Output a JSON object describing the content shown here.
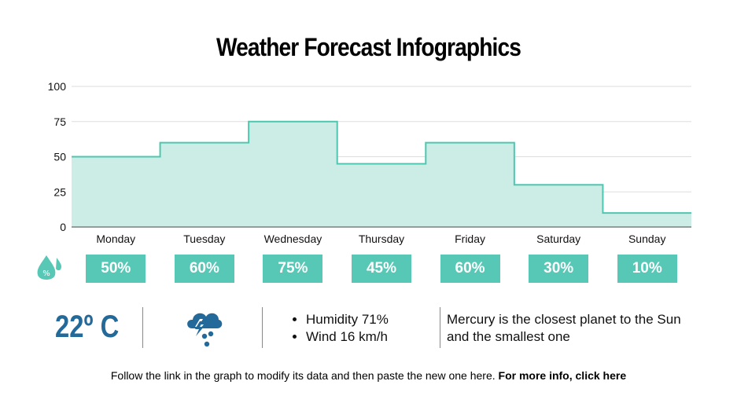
{
  "chart_data": {
    "type": "area",
    "title": "Weather Forecast Infographics",
    "categories": [
      "Monday",
      "Tuesday",
      "Wednesday",
      "Thursday",
      "Friday",
      "Saturday",
      "Sunday"
    ],
    "values": [
      50,
      60,
      75,
      45,
      60,
      30,
      10
    ],
    "ylim": [
      0,
      100
    ],
    "yticks": [
      "0",
      "25",
      "50",
      "75",
      "100"
    ],
    "step": true,
    "grid": true,
    "line_color": "#4ec7b0",
    "fill_color": "#cbede6"
  },
  "badges": [
    "50%",
    "60%",
    "75%",
    "45%",
    "60%",
    "30%",
    "10%"
  ],
  "badge_icon": "humidity-drop-percent-icon",
  "temperature": "22º C",
  "weather_icon": "thunderstorm-cloud-icon",
  "details": [
    "Humidity 71%",
    "Wind 16 km/h"
  ],
  "note": "Mercury is the closest planet to the Sun and the smallest one",
  "footer": {
    "text": "Follow the link in the graph to modify its data and then paste the new one here. ",
    "link": "For more info, click here"
  },
  "colors": {
    "accent": "#57c8b6",
    "blue": "#236a9a"
  }
}
